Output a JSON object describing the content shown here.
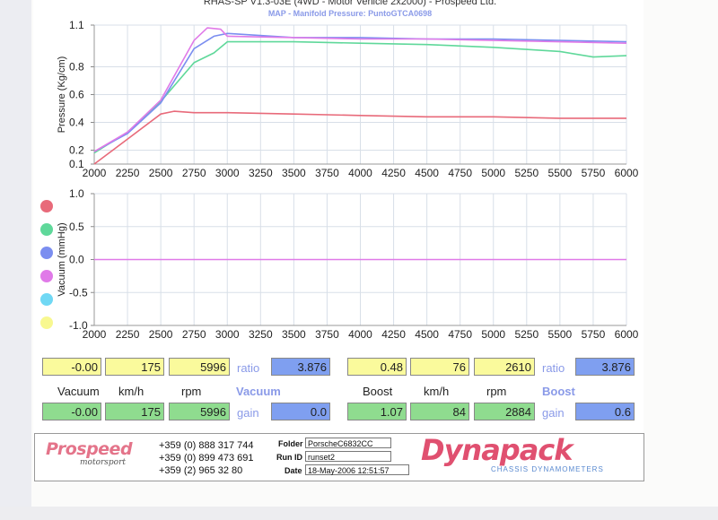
{
  "header": {
    "title": "RHAS-SP V1.3-03E  (4WD - Motor Vehicle 2x2000) - Prospeed Ltd.",
    "subtitle": "MAP - Manifold Pressure: PuntoGTCA0698"
  },
  "colors": {
    "red": "#e86a7a",
    "green": "#5fd89a",
    "blue": "#7b8ef0",
    "magenta": "#e07ae8",
    "cyan": "#70d8f4",
    "yellow": "#f8f890",
    "grid": "#d8dfe8",
    "accent_blue": "#8a9ae8"
  },
  "legend_swatches": [
    "red",
    "green",
    "blue",
    "magenta",
    "cyan",
    "yellow"
  ],
  "chart_data": [
    {
      "type": "line",
      "ylabel": "Pressure (Kg/cm)",
      "xlim": [
        2000,
        6000
      ],
      "ylim": [
        0.1,
        1.1
      ],
      "xticks": [
        "2000",
        "2250",
        "2500",
        "2750",
        "3000",
        "3250",
        "3500",
        "3750",
        "4000",
        "4250",
        "4500",
        "4750",
        "5000",
        "5250",
        "5500",
        "5750",
        "6000"
      ],
      "yticks": [
        {
          "v": 1.1,
          "t": "1.1"
        },
        {
          "v": 0.8,
          "t": "0.8"
        },
        {
          "v": 0.6,
          "t": "0.6"
        },
        {
          "v": 0.4,
          "t": "0.4"
        },
        {
          "v": 0.2,
          "t": "0.2"
        },
        {
          "v": 0.1,
          "t": "0.1"
        }
      ],
      "series": [
        {
          "color": "red",
          "x": [
            2000,
            2250,
            2500,
            2600,
            2750,
            3000,
            3500,
            4000,
            4500,
            5000,
            5500,
            6000
          ],
          "y": [
            0.1,
            0.28,
            0.46,
            0.48,
            0.47,
            0.47,
            0.46,
            0.45,
            0.44,
            0.44,
            0.43,
            0.43
          ]
        },
        {
          "color": "green",
          "x": [
            2000,
            2250,
            2500,
            2750,
            2900,
            3000,
            3500,
            4000,
            4500,
            5000,
            5500,
            5750,
            6000
          ],
          "y": [
            0.18,
            0.33,
            0.55,
            0.83,
            0.9,
            0.98,
            0.98,
            0.97,
            0.96,
            0.94,
            0.91,
            0.87,
            0.88
          ]
        },
        {
          "color": "blue",
          "x": [
            2000,
            2250,
            2500,
            2750,
            2900,
            3000,
            3500,
            4000,
            4500,
            5000,
            5500,
            6000
          ],
          "y": [
            0.19,
            0.32,
            0.54,
            0.93,
            1.02,
            1.04,
            1.01,
            1.01,
            1.0,
            1.0,
            0.99,
            0.98
          ]
        },
        {
          "color": "magenta",
          "x": [
            2000,
            2250,
            2500,
            2750,
            2850,
            2950,
            3000,
            3500,
            4000,
            4500,
            5000,
            5500,
            6000
          ],
          "y": [
            0.19,
            0.33,
            0.56,
            0.99,
            1.08,
            1.07,
            1.02,
            1.01,
            1.0,
            1.0,
            0.99,
            0.98,
            0.97
          ]
        }
      ]
    },
    {
      "type": "line",
      "ylabel": "Vacuum (mmHg)",
      "xlim": [
        2000,
        6000
      ],
      "ylim": [
        -1.0,
        1.0
      ],
      "xticks": [
        "2000",
        "2250",
        "2500",
        "2750",
        "3000",
        "3250",
        "3500",
        "3750",
        "4000",
        "4250",
        "4500",
        "4750",
        "5000",
        "5250",
        "5500",
        "5750",
        "6000"
      ],
      "yticks": [
        {
          "v": 1.0,
          "t": "1.0"
        },
        {
          "v": 0.5,
          "t": "0.5"
        },
        {
          "v": 0.0,
          "t": "0.0"
        },
        {
          "v": -0.5,
          "t": "-0.5"
        },
        {
          "v": -1.0,
          "t": "-1.0"
        }
      ],
      "series": [
        {
          "color": "magenta",
          "x": [
            2000,
            6000
          ],
          "y": [
            0.0,
            0.0
          ]
        }
      ]
    }
  ],
  "readouts": {
    "vacuum_top": [
      "-0.00",
      "175",
      "5996"
    ],
    "vacuum_ratio_label": "ratio",
    "vacuum_ratio": "3.876",
    "vacuum_headers": [
      "Vacuum",
      "km/h",
      "rpm"
    ],
    "vacuum_title": "Vacuum",
    "vacuum_bottom": [
      "-0.00",
      "175",
      "5996"
    ],
    "vacuum_gain_label": "gain",
    "vacuum_gain": "0.0",
    "boost_top": [
      "0.48",
      "76",
      "2610"
    ],
    "boost_ratio_label": "ratio",
    "boost_ratio": "3.876",
    "boost_headers": [
      "Boost",
      "km/h",
      "rpm"
    ],
    "boost_title": "Boost",
    "boost_bottom": [
      "1.07",
      "84",
      "2884"
    ],
    "boost_gain_label": "gain",
    "boost_gain": "0.6"
  },
  "footer": {
    "brand_logo_text": "Prospeed",
    "brand_logo_sub": "motorsport",
    "phones": [
      "+359 (0) 888 317 744",
      "+359 (0) 899 473 691",
      "+359 (2) 965 32 80"
    ],
    "folder_label": "Folder",
    "folder_value": "PorscheC6832CC",
    "runid_label": "Run ID",
    "runid_value": "runset2",
    "date_label": "Date",
    "date_value": "18-May-2006  12:51:57",
    "dynapack_logo": "Dynapack",
    "dynapack_sub": "CHASSIS  DYNAMOMETERS"
  }
}
